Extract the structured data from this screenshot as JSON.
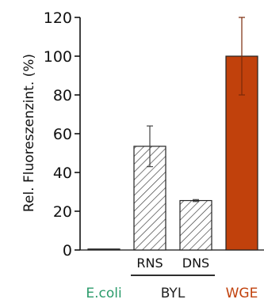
{
  "chart_data": {
    "type": "bar",
    "ylabel": "Rel. Fluoreszenzint. (%)",
    "ylim": [
      0,
      120
    ],
    "yticks": [
      0,
      20,
      40,
      60,
      80,
      100,
      120
    ],
    "grid": false,
    "bars": [
      {
        "group": "E.coli",
        "sublabel": "",
        "value": 0.5,
        "error": 0,
        "fill": "solid",
        "color": "#ffffff"
      },
      {
        "group": "BYL",
        "sublabel": "RNS",
        "value": 53.5,
        "error": 10.5,
        "fill": "hatched",
        "color": "#ffffff"
      },
      {
        "group": "BYL",
        "sublabel": "DNS",
        "value": 25.5,
        "error": 0.5,
        "fill": "hatched",
        "color": "#ffffff"
      },
      {
        "group": "WGE",
        "sublabel": "",
        "value": 100,
        "error": 20,
        "fill": "solid",
        "color": "#c1410c"
      }
    ],
    "groups": [
      {
        "label": "E.coli",
        "color": "#2b9b6b"
      },
      {
        "label": "BYL",
        "color": "#222222"
      },
      {
        "label": "WGE",
        "color": "#c1410c"
      }
    ]
  }
}
